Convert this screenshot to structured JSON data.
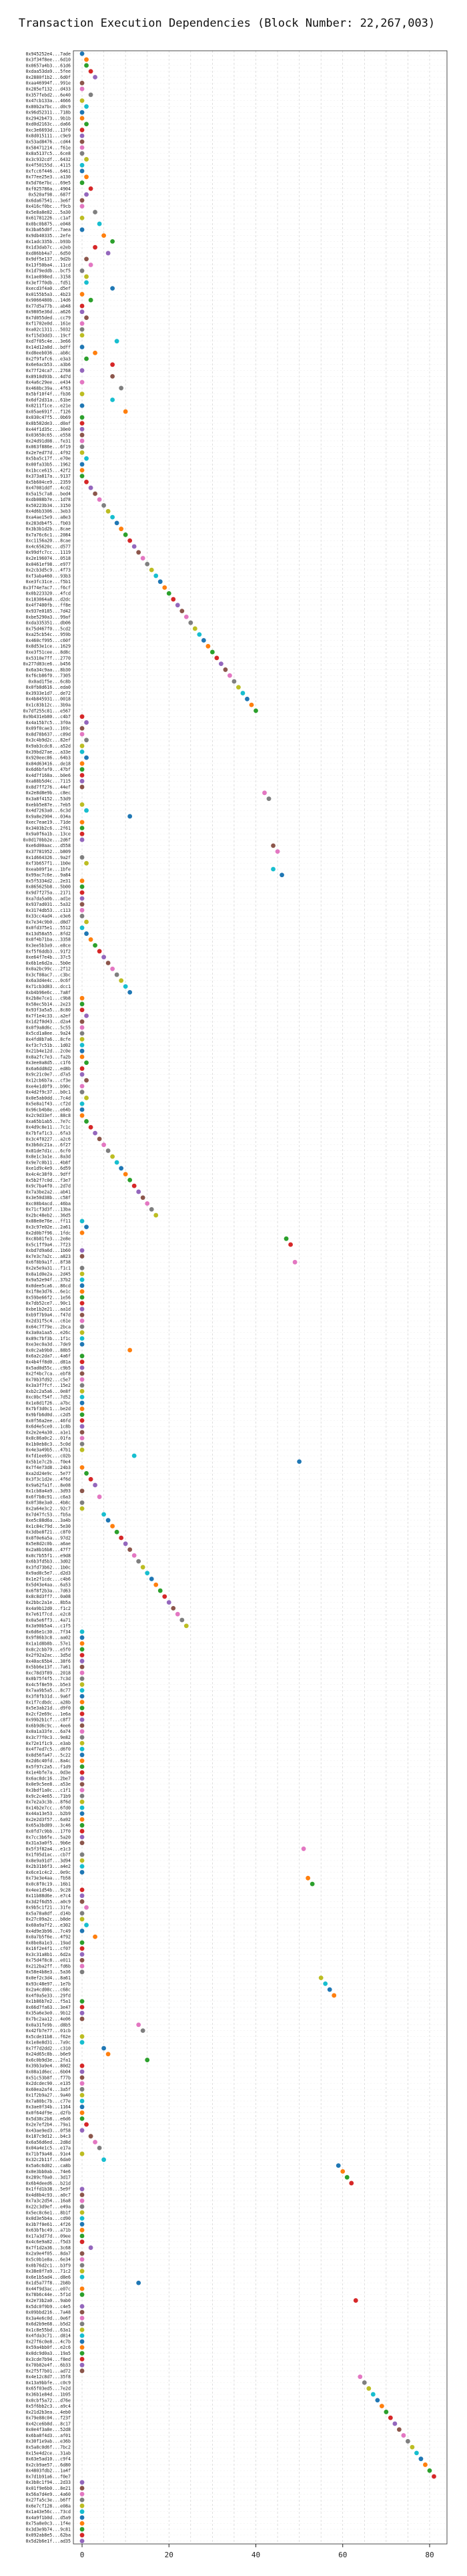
{
  "chart_data": {
    "type": "scatter",
    "title": "Transaction Execution Dependencies (Block Number: 22,267,003)",
    "xlabel": "",
    "ylabel": "",
    "xlim": [
      -2,
      84
    ],
    "xticks": [
      0,
      20,
      40,
      60,
      80
    ],
    "grid": true,
    "legend": "none",
    "palette": [
      "#1f77b4",
      "#ff7f0e",
      "#2ca02c",
      "#d62728",
      "#9467bd",
      "#8c564b",
      "#e377c2",
      "#7f7f7f",
      "#bcbd22",
      "#17becf"
    ],
    "x_values": [
      0,
      1,
      1,
      2,
      3,
      0,
      0,
      2,
      0,
      1,
      0,
      0,
      1,
      0,
      0,
      0,
      0,
      0,
      1,
      0,
      0,
      1,
      0,
      2,
      1,
      0,
      0,
      3,
      0,
      4,
      0,
      5,
      7,
      3,
      6,
      1,
      2,
      0,
      1,
      1,
      7,
      0,
      2,
      0,
      0,
      1,
      0,
      0,
      0,
      8,
      0,
      3,
      1,
      7,
      0,
      7,
      0,
      9,
      0,
      7,
      0,
      10,
      0,
      0,
      0,
      0,
      0,
      0,
      0,
      1,
      0,
      0,
      0,
      1,
      2,
      3,
      4,
      5,
      6,
      7,
      8,
      9,
      10,
      11,
      12,
      13,
      14,
      15,
      16,
      17,
      18,
      19,
      20,
      21,
      22,
      23,
      24,
      25,
      26,
      27,
      28,
      29,
      30,
      31,
      32,
      33,
      34,
      35,
      36,
      37,
      38,
      39,
      40,
      0,
      1,
      0,
      0,
      1,
      0,
      0,
      1,
      0,
      0,
      0,
      0,
      0,
      42,
      43,
      0,
      1,
      11,
      0,
      0,
      0,
      0,
      44,
      45,
      0,
      1,
      44,
      46,
      0,
      0,
      0,
      0,
      0,
      0,
      0,
      1,
      0,
      1,
      2,
      3,
      4,
      5,
      6,
      7,
      8,
      9,
      10,
      11,
      0,
      0,
      0,
      1,
      0,
      0,
      0,
      0,
      0,
      0,
      0,
      1,
      0,
      0,
      1,
      0,
      0,
      1,
      0,
      0,
      0,
      1,
      2,
      3,
      4,
      5,
      6,
      7,
      8,
      9,
      10,
      11,
      12,
      13,
      14,
      15,
      16,
      17,
      0,
      1,
      0,
      47,
      48,
      0,
      0,
      49,
      0,
      0,
      0,
      0,
      0,
      0,
      0,
      0,
      0,
      0,
      0,
      0,
      0,
      0,
      11,
      0,
      0,
      0,
      0,
      0,
      0,
      0,
      0,
      0,
      0,
      0,
      0,
      0,
      0,
      0,
      0,
      0,
      12,
      50,
      0,
      1,
      2,
      3,
      0,
      4,
      0,
      0,
      5,
      6,
      7,
      8,
      9,
      10,
      11,
      12,
      13,
      14,
      15,
      16,
      17,
      18,
      19,
      20,
      21,
      22,
      23,
      24,
      0,
      0,
      0,
      0,
      0,
      0,
      0,
      0,
      0,
      0,
      0,
      0,
      0,
      0,
      0,
      0,
      0,
      0,
      0,
      0,
      0,
      0,
      0,
      0,
      0,
      0,
      0,
      0,
      0,
      0,
      0,
      0,
      0,
      0,
      0,
      0,
      0,
      51,
      0,
      0,
      0,
      0,
      52,
      53,
      0,
      0,
      0,
      1,
      0,
      0,
      1,
      0,
      3,
      0,
      0,
      0,
      0,
      0,
      0,
      55,
      56,
      57,
      58,
      0,
      0,
      0,
      0,
      13,
      14,
      0,
      0,
      5,
      6,
      15,
      0,
      0,
      0,
      0,
      0,
      0,
      0,
      0,
      0,
      0,
      1,
      0,
      2,
      3,
      4,
      0,
      5,
      59,
      60,
      61,
      62,
      0,
      0,
      0,
      0,
      0,
      0,
      0,
      0,
      0,
      0,
      2,
      0,
      0,
      0,
      0,
      0,
      13,
      0,
      0,
      63,
      0,
      0,
      0,
      0,
      0,
      0,
      0,
      0,
      0,
      0,
      0,
      0,
      64,
      65,
      66,
      67,
      68,
      69,
      70,
      71,
      72,
      73,
      74,
      75,
      76,
      77,
      78,
      79,
      80,
      81
    ],
    "y_labels": [
      "0x945252e4...7ade",
      "0x3f34f8ee...6d10",
      "0x0657a4b3...61d6",
      "0xdaa53da9...5fee",
      "0x2880f1b2...6d0f",
      "0xaa46994f...991e",
      "0x285ef132...d433",
      "0x357febd2...6e40",
      "0x47cb133a...4666",
      "0x80b2a7bc...d0c9",
      "0x96d52311...718b",
      "0x2942b473...9b1b",
      "0xd0d2163c...da66",
      "0xc3e6693d...13f0",
      "0x8d015111...c9e9",
      "0x53ad8476...cd44",
      "0x58471214...f61e",
      "0x8a5137c5...6ce8",
      "0x3c932cdf...6432",
      "0x4f50155d...4115",
      "0xfcc6f446...6461",
      "0x77ee25e3...a130",
      "0x5d76e7bc...69e5",
      "0xf025786a...4904",
      "0x520af98...687f",
      "0x6da67541...3e6f",
      "0x416cf0bc...f9cb",
      "0x5e8a8e82...5a30",
      "0x61781226...c1af",
      "0x0bc0b875...e048",
      "0x3ba65d0f...7aea",
      "0x9db40335...2efe",
      "0x1adc335b...b93b",
      "0x1d3dab7c...e2eb",
      "0xd86bb4a7...6d50",
      "0x9df5e137...9d2b",
      "0x13f50ba4...11cd",
      "0x1d79eddb...bcf5",
      "0x1ae898ed...3158",
      "0x3ef7f0db...fd51",
      "0xecd3f4a0...d5ef",
      "0x0155b5a3...4b23",
      "0x9066480b...14d6",
      "0x77d5a77b...ab48",
      "0x9805e36d...a626",
      "0x7d055ded...cc79",
      "0xf1702e0d...161e",
      "0xa02c1311...5032",
      "0xf15d3dd3...19cf",
      "0xd7f05c4e...3e66",
      "0x14d12a8d...bdff",
      "0xd8eeb036...ab8c",
      "0x2f9fafc6...e3a3",
      "0x6e6acb53...a3b6",
      "0x77f24ca7...2768",
      "0x8910d93b...4d7d",
      "0x4a6c29ee...e434",
      "0x468bc39a...4f63",
      "0x5bf10f4f...fb36",
      "0x6df2d31a...61be",
      "0x8211f1ce...e21e",
      "0x05ae691f...f126",
      "0x030c47f5...0b69",
      "0x8b582de3...d0af",
      "0x44f1d35c...30e0",
      "0x03650c65...e558",
      "0x24d91d08...fe31",
      "0x063f886e...6f19",
      "0x2e7ed77d...4f92",
      "0x5ba5c17f...e70e",
      "0x00fa33b5...1962",
      "0x1bcce615...42f2",
      "0x373a817a...9137",
      "0x5b604ce9...2359",
      "0x47081ddf...4cd2",
      "0x5a15c7a8...bed4",
      "0xdb088b7e...1d78",
      "0x50223b34...3150",
      "0x4d6b3306...3eb3",
      "0xa4ae15e9...a8e3",
      "0x283db4f5...fb03",
      "0x3b3b1d2b...8cae",
      "0x7a76c6c1...2084",
      "0xc1156a20...8cae",
      "0x4c65620c...d577",
      "0x99dfc7cc...1119",
      "0x2e196074...0518",
      "0x0461ef98...e977",
      "0x2cb3d5c9...4f73",
      "0xf3aba460...93b3",
      "0xe3fc31ce...f5b1",
      "0x3f74e7ac7...f6cf",
      "0x0b223320...4fcd",
      "0x183064a8...d2dc",
      "0x4f7400fb...ff8e",
      "0x937e0185...7d42",
      "0xbe5290a3...99af",
      "0xda335351...db06",
      "0x75d467f0...5cd2",
      "0xa25cb54c...959b",
      "0x460cf995...c60f",
      "0x8d53e1ce...1629",
      "0xe3f51cee...8d8c",
      "0x5310e7ff...2770",
      "0x277d83ce6...b456",
      "0x6a34c9aa...8b30",
      "0xf6cb86f0...7305",
      "0x0ad1f5e...6c8b",
      "0x0fb8d616...eda0",
      "0x3933e1d7...de72",
      "0x4b845931...0018",
      "0x1c83b12c...3b9a",
      "0x7df255c81...e567",
      "0x9b431eb80...c4b7",
      "0x4a15b7c5...3f0a",
      "0x09f0cae3...169c",
      "0x8d78b637...c89d",
      "0x3c4b9d2c...82ef",
      "0x9ab3cdc8...a52d",
      "0x39bd27ae...a33e",
      "0x920eec86...64b3",
      "0x84d63416...de18",
      "0x6d6bfaf0...47bf",
      "0x4d7f168a...b0e6",
      "0xa88b5d4c...7115",
      "0x8d7ff276...44ef",
      "0x2e8d8e9b...c8ec",
      "0x3a8f4152...53d9",
      "0xebb5e87e...7eb5",
      "0x4d7263a0...6c3d",
      "0x9a8e2904...034a",
      "0xec7eae19...71de",
      "0x3403b2c6...2f61",
      "0x9a0f6a1b...13ce",
      "0x0d170bb2e...2d6f",
      "0xe6d00aac...d558",
      "0x37781952...b809",
      "0x1d664326...9a2f",
      "0xf3b657f1...1b0e",
      "0xeab09f1e...1bfe",
      "0x99ac7c6e...9a84",
      "0x5f5334d2...2e31",
      "0x865625b8...5b00",
      "0x9d7f275a...2171",
      "0xa7da5a0b...ad1e",
      "0x937ad031...5a32",
      "0x3174db53...c113",
      "0x33cc4ad4...e3e6",
      "0x7e34c9b0...d8d7",
      "0x0fd375e1...5512",
      "0x13d58a55...8fd2",
      "0x8f4b71ba...3358",
      "0x3ee5b3a9...e8ce",
      "0xf5f6ddb3...91f2",
      "0xe64f7e4b...37c5",
      "0x6b1e6d2a...5b0e",
      "0x0a2bc99c...2f12",
      "0x3cf08ac7...c3bc",
      "0x6a3d4e4c...0c6f",
      "0x71cb3d83...dcc1",
      "0xb4b96e6c...7a8f",
      "0x2b8e7ce1...c9b8",
      "0x58ec5b14...2e23",
      "0x93f3a5a5...8c80",
      "0x7f1e4c33...a2ef",
      "0x1d2f0d43...d2a4",
      "0x0f9a8d6c...5c55",
      "0x5cd1a8ee...9a24",
      "0x4fd8b7a6...8cfe",
      "0xf3c7c51b...1d02",
      "0x21b4e12d...2c0e",
      "0x8a2fc7e3...fa2b",
      "0x3ee0a8d5...c1f6",
      "0x6a6dd8d2...ed8b",
      "0x9c21c0e7...d7a5",
      "0x12cb6b7a...cf3e",
      "0xe4e1d0f9...b90c",
      "0x4d2f9c37...b0c1",
      "0x0e5ab0dd...7c4d",
      "0x5e8a1f43...cf2d",
      "0x96cb4b8e...e64b",
      "0x2c9d33ef...88c8",
      "0xa65b1ab5...7e7c",
      "0x4d9c8e11...7c1c",
      "0x7bfaf1c3...6fa3",
      "0x3c4f0227...a2c6",
      "0x3b6dc21a...6f27",
      "0x81de7d1c...6cf0",
      "0x8e1c3a1e...8a3d",
      "0x9e7c0b11...4b8f",
      "0xe1d9c4e9...6d59",
      "0x4c4c38f0...9dff",
      "0x5b2f7c0d...f3e7",
      "0x9c7ba4f0...2d7d",
      "0x7a3be2a2...ab41",
      "0x3e50d38b...c58f",
      "0xc08b4acd...46ba",
      "0x71cf3d3f...13ba",
      "0x2bc48eb2...36d5",
      "0x88e0e76e...ff11",
      "0x3c97e02e...2a61",
      "0x2d0b7f96...1fdc",
      "0xc8b81fe3...2e8e",
      "0x5c1ff9a4...7f23",
      "0xbd7d9a6d...1b60",
      "0x7e3c7a2c...a823",
      "0x6f8b9a1f...8f38",
      "0x2e5e9a31...f1c1",
      "0x8a1d0e2a...2d45",
      "0x9a52e94f...37b2",
      "0x0dee5ca6...86cd",
      "0x1f8e3d76...6e1c",
      "0x59be66f2...1e56",
      "0x7db52ce7...90c1",
      "0xbe1b2e21...aa1d",
      "0xb9f7b9a4...f47d",
      "0x2d31f5c4...c61e",
      "0x64c7f79e...2bca",
      "0x3a0a1aa5...e26c",
      "0x89c7bf3b...1f1c",
      "0xe3ec0a3d...7de9",
      "0x0c2ab9b0...88b5",
      "0x6a2c2da7...4a6f",
      "0x4b4ff8d0...d81a",
      "0x5ad0d55c...c9b5",
      "0x2f4bc7ca...ebf8",
      "0x70b3fd92...c5e7",
      "0x3a3f7fcf...15e2",
      "0xb2c2a5a6...0e8f",
      "0xc0bcf54f...7d52",
      "0x1e8d1f26...a7bc",
      "0x7bf3d0c1...be2d",
      "0x9bfb6d0d...c2d5",
      "0x0f56a2ee...46fd",
      "0x6d4e5ce0...1c8b",
      "0x2e2e4a30...a1e1",
      "0x8c86a0c2...01fa",
      "0x1b0eb8c3...5c0d",
      "0x4e3a49b5...47b1",
      "0xfd1ee69c...c02b",
      "0x5b1e7c2b...f0e4",
      "0x7f4e73d8...24b3",
      "0xa2d24e9c...5e77",
      "0x3f3c1d2e...4f6d",
      "0x9a62fa1f...8e08",
      "0x1cb8a4a9...3d93",
      "0x6f7b8c91...c6a3",
      "0x0f38e3a0...4b8c",
      "0x2a64e3c2...92c7",
      "0x7d47fc53...fb5a",
      "0xe5c88d6a...3a4b",
      "0x1c84c79d...5e30",
      "0x3dbe8f21...c8f0",
      "0x8f0e6a5a...97d2",
      "0x5e8d2c0b...a6ae",
      "0x2a8b16b8...47f7",
      "0x0c7b55f1...e9d8",
      "0x6b3fd5b3...3d02",
      "0x3fd73b62...1b0c",
      "0x9ad8c5e7...d2d3",
      "0x1e2f1cdc...c4b6",
      "0x5d43e4aa...6a53",
      "0x6f8f2b3a...7d63",
      "0x8c8d3ff7...0a08",
      "0x2bbc2a1e...8b5a",
      "0x4a9b12d0...f1c2",
      "0x7e61f7cd...e2c8",
      "0x0a5e6ff3...4a71",
      "0x3a90b5a4...c1f5",
      "0x6d6e1c30...7f34",
      "0x9f86b3c8...aa02",
      "0x1a1d8b8b...57e1",
      "0x8c2cbb79...e5f0",
      "0x2f92a2ac...3d5d",
      "0x40ac65b4...38f6",
      "0x5bb6e13f...7a61",
      "0xc78d3f89...2018",
      "0x0b75f4f5...7c3d",
      "0x4c5f8e59...b5e3",
      "0x7aa9b5a5...8c77",
      "0x3f8fb31d...9a6f",
      "0x1f7cdbdc...a28b",
      "0x5e3ab21d...d9f0",
      "0x2cf2e69c...1e6a",
      "0x99b2b1cf...c8f7",
      "0x6b9d6c9c...4ee6",
      "0x0a1a33fe...6a74",
      "0x3c77f0c3...9e82",
      "0x72e1f1c9...e3ab",
      "0x4f7ed7c5...d6f0",
      "0x8d56fa47...5c22",
      "0x2d6c40fd...8a4c",
      "0x5f97c2a5...f1d9",
      "0x1e4bfe7a...0d3e",
      "0x6ac8dc16...2be7",
      "0x0e9c5ee8...a53e",
      "0x3bdf1a0c...c1f1",
      "0x9c2c4e65...71b9",
      "0x7e2a3c3b...8f6d",
      "0x14b2e7cc...6fd0",
      "0x44a13e53...b2b9",
      "0x2e2d3f57...6a92",
      "0x65a3bd89...3c46",
      "0x0fd7c9bb...17f0",
      "0x7cc3b6fe...5a20",
      "0x31a3a0f5...9b6e",
      "0x5f3f82a4...e1c3",
      "0x1f05d1ac...cb7f",
      "0x8e9a91df...3d94",
      "0x2b31b6f3...a4e2",
      "0x6ce1c4c2...0e9c",
      "0x73e3e4aa...fb58",
      "0x0c8f0c19...16b1",
      "0x4ee1d54b...9c28",
      "0x11b88d6e...e7c4",
      "0x3d2f6d55...a0c9",
      "0x9b5c1f21...31fe",
      "0x5a78a8df...d14b",
      "0x27c09a2c...b8de",
      "0x60a9a7f2...e302",
      "0x4d9e3b96...7c49",
      "0x0a7b5f6e...4f92",
      "0x8be8a1e3...19ad",
      "0x16f2e4f1...cf07",
      "0x3c31a8b1...6d2a",
      "0x75d4f8c8...e011",
      "0x212ba2ff...fd6b",
      "0x58e4b8e3...5a36",
      "0x0ef2c3d4...8a61",
      "0x93c48e97...1e7b",
      "0x2a4cd08c...c68c",
      "0x4f0a5e33...29fd",
      "0x1b86b7e2...f5a1",
      "0x66d7fa63...3e47",
      "0x35a6e3e0...9b12",
      "0x7bc2aa12...4e06",
      "0x0a31fe9b...d8b5",
      "0x42fb7e77...01cb",
      "0x5cde31b8...f62e",
      "0x1e8e8d31...7a9c",
      "0x7f7d2dd2...c310",
      "0x24d65c8b...b6e9",
      "0x6c0b9d3e...2fa1",
      "0x39b3a9e4...80d2",
      "0x08a1d6ec...6b04",
      "0x51c53b8f...f77b",
      "0x2dcdec90...e135",
      "0x60ea2af4...3a5f",
      "0x1f2b9a27...9a40",
      "0x7a80bc7b...c77e",
      "0x3ae0f34b...1164",
      "0x0f64df9e...d2fb",
      "0x5d38c2b8...e6d6",
      "0x2e7ef2b4...79a1",
      "0x43ae9ed3...0f58",
      "0x187c9d12...b4c3",
      "0x6a56d6ed...2d8d",
      "0x04a4e1c5...e17a",
      "0x71bf9a48...91e4",
      "0x32c2b11f...6da0",
      "0x5a6c6d02...ca8b",
      "0x0e3bb0ab...74e6",
      "0x289cf0a0...3d17",
      "0x6b4deed6...b21d",
      "0x1ffd1b38...5e9f",
      "0x4d8b4c93...a0c7",
      "0x7a3c2d54...16a8",
      "0x22c3d9ef...e49a",
      "0x5ec8c6e1...8b1f",
      "0x0d3e5b4a...cd90",
      "0x3b7f0e61...4f26",
      "0x63bfbc49...a71b",
      "0x17a3d77d...09ee",
      "0x4c6e9a82...f5d3",
      "0x7f1d2a36...3c68",
      "0x2a9e4f05...8da7",
      "0x5c0b1e8a...6e34",
      "0x0b76d2c1...b3f9",
      "0x38e8f7a9...71c2",
      "0x6e1b5ad4...d8e6",
      "0x1d5a77f8...2b8b",
      "0x44f9d3ac...e07c",
      "0x78b6c44e...5f1d",
      "0x2e73b2a0...9ab0",
      "0x5dc0f9b9...c4e5",
      "0x09bbd216...7a48",
      "0x3a4e6c0d...0e6f",
      "0x6d2b9e68...b5d2",
      "0x1c8e55bd...63a1",
      "0x4fda3c71...d814",
      "0x27f6c0e8...4c7b",
      "0x59a4bb0f...e2c6",
      "0x0dc9d0a3...19a5",
      "0x3cde7b94...f8ed",
      "0x70b82e4f...6b33",
      "0x2f5f7b01...ad72",
      "0x4e12c8d7...35f8",
      "0x13a9bbfe...c0c9",
      "0x65f03ed5...7e2d",
      "0x36b1e84d...1b95",
      "0x0cbf5a72...d76e",
      "0x5f6bb2c3...a9c4",
      "0x21d2b3ea...4eb0",
      "0x79e88c04...f23f",
      "0x42ce6b8d...8c17",
      "0x0e4f3a8e...52d8",
      "0x6ba8f4d3...af01",
      "0x30f1e9ab...e36b",
      "0x5a8c0d6f...7bc2",
      "0x15e4d2ce...31ab",
      "0x63e5ad10...c9f4",
      "0x2cb9ae57...6d80",
      "0x4803fdb2...1a4f",
      "0x7d1b91a6...f0e7",
      "0x3b8c1f94...2d33",
      "0x01f9e6b0...8e21",
      "0x56a7d4e9...4a60",
      "0x27fa5c3e...b6ff",
      "0x6e7cf128...e08a",
      "0x1a43e56c...73cd",
      "0x4a9f1b0d...d5a9",
      "0x75a8e0c3...1f4e",
      "0x3d3e9b74...9c81",
      "0x092ab8e5...62ba",
      "0x5d2b6e1f...ad35"
    ],
    "group_starts": [
      0,
      0,
      37,
      0,
      0,
      0,
      0,
      0,
      0,
      0
    ]
  }
}
